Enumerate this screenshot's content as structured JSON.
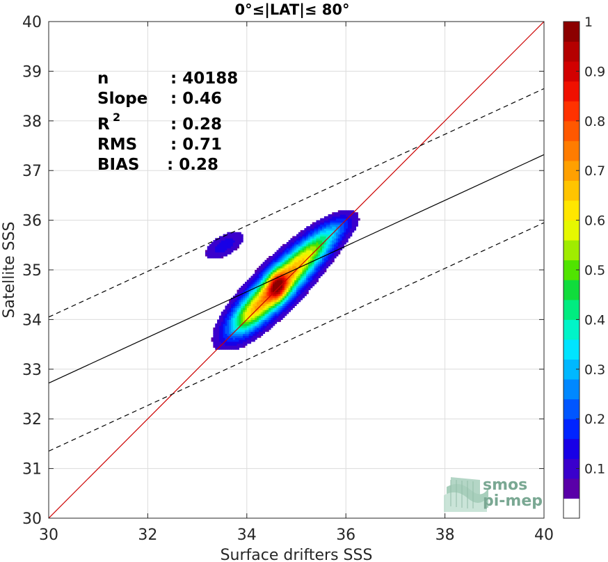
{
  "chart_data": {
    "type": "heatmap",
    "title": "0°≤|LAT|≤ 80°",
    "xlabel": "Surface drifters SSS",
    "ylabel": "Satellite SSS",
    "xlim": [
      30,
      40
    ],
    "ylim": [
      30,
      40
    ],
    "xticks": [
      "30",
      "32",
      "34",
      "36",
      "38",
      "40"
    ],
    "yticks": [
      "30",
      "31",
      "32",
      "33",
      "34",
      "35",
      "36",
      "37",
      "38",
      "39",
      "40"
    ],
    "grid": true,
    "colorbar": {
      "range": [
        0,
        1
      ],
      "ticks": [
        "0.1",
        "0.2",
        "0.3",
        "0.4",
        "0.5",
        "0.6",
        "0.7",
        "0.8",
        "0.9",
        "1"
      ],
      "colors": [
        "#ffffff",
        "#5a00a8",
        "#3a00cc",
        "#1800e6",
        "#0024ff",
        "#0056ff",
        "#0088ff",
        "#00b8ff",
        "#00e4ff",
        "#00f4c8",
        "#00ec80",
        "#10dc3c",
        "#50e400",
        "#a0ec00",
        "#e6f800",
        "#ffe600",
        "#ffc400",
        "#ffa000",
        "#ff7c00",
        "#ff5800",
        "#ff3200",
        "#f01000",
        "#d20000",
        "#b40000",
        "#8c0000"
      ]
    },
    "statistics": {
      "n": "40188",
      "slope": "0.46",
      "r2": "0.28",
      "rms": "0.71",
      "bias": "0.28"
    },
    "reference_lines": [
      {
        "type": "identity",
        "color": "#cc0000",
        "style": "solid",
        "points": [
          [
            30,
            30
          ],
          [
            40,
            40
          ]
        ]
      },
      {
        "type": "regression",
        "color": "#000000",
        "style": "solid",
        "points": [
          [
            30,
            32.72
          ],
          [
            40,
            37.32
          ]
        ]
      },
      {
        "type": "upper-bound",
        "color": "#000000",
        "style": "dashed",
        "points": [
          [
            30,
            34.05
          ],
          [
            40,
            38.65
          ]
        ]
      },
      {
        "type": "lower-bound",
        "color": "#000000",
        "style": "dashed",
        "points": [
          [
            30,
            31.35
          ],
          [
            40,
            35.95
          ]
        ]
      }
    ],
    "density_clusters": [
      {
        "cx": 34.6,
        "cy": 34.65,
        "sx": 0.7,
        "sy": 0.22,
        "angle_deg": 45,
        "amp": 0.72
      },
      {
        "cx": 35.35,
        "cy": 35.42,
        "sx": 0.45,
        "sy": 0.18,
        "angle_deg": 40,
        "amp": 0.3
      },
      {
        "cx": 34.0,
        "cy": 34.05,
        "sx": 0.35,
        "sy": 0.18,
        "angle_deg": 45,
        "amp": 0.22
      },
      {
        "cx": 34.62,
        "cy": 34.68,
        "sx": 0.13,
        "sy": 0.2,
        "angle_deg": 0,
        "amp": 0.32
      },
      {
        "cx": 35.8,
        "cy": 35.85,
        "sx": 0.3,
        "sy": 0.14,
        "angle_deg": 30,
        "amp": 0.1
      },
      {
        "cx": 33.55,
        "cy": 35.5,
        "sx": 0.3,
        "sy": 0.14,
        "angle_deg": 30,
        "amp": 0.11
      }
    ]
  },
  "stats_labels": {
    "n_label": "n",
    "n_value": ": 40188",
    "slope_label": "Slope",
    "slope_value": ": 0.46",
    "r2_label": "R",
    "r2_sup": "2",
    "r2_value": ": 0.28",
    "rms_label": "RMS",
    "rms_value": ": 0.71",
    "bias_label": "BIAS",
    "bias_value": ": 0.28"
  },
  "logo": {
    "line1": "smos",
    "line2": "pi-mep",
    "color": "#7aa893"
  }
}
